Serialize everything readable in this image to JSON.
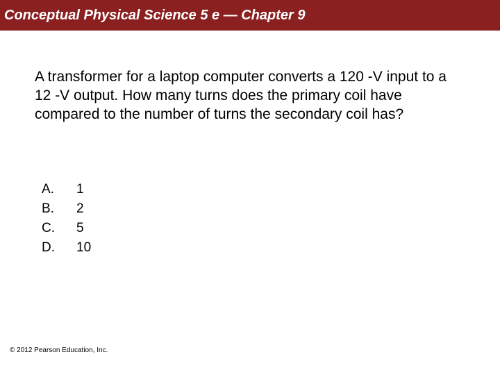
{
  "header": {
    "title": "Conceptual Physical Science 5 e — Chapter 9"
  },
  "question": {
    "text": "A transformer for a laptop computer converts a 120 -V input to a 12 -V output.  How many turns does the primary coil have compared to the number of turns the secondary coil has?"
  },
  "options": [
    {
      "letter": "A.",
      "value": "1"
    },
    {
      "letter": "B.",
      "value": "2"
    },
    {
      "letter": "C.",
      "value": "5"
    },
    {
      "letter": "D.",
      "value": "10"
    }
  ],
  "footer": {
    "copyright": "© 2012 Pearson Education, Inc."
  },
  "colors": {
    "header_background": "#8b2020",
    "header_text": "#ffffff",
    "body_background": "#ffffff",
    "body_text": "#000000"
  },
  "typography": {
    "header_fontsize": 20,
    "header_fontweight": "bold",
    "header_fontstyle": "italic",
    "question_fontsize": 21,
    "option_fontsize": 19,
    "copyright_fontsize": 10,
    "font_family": "Arial"
  }
}
